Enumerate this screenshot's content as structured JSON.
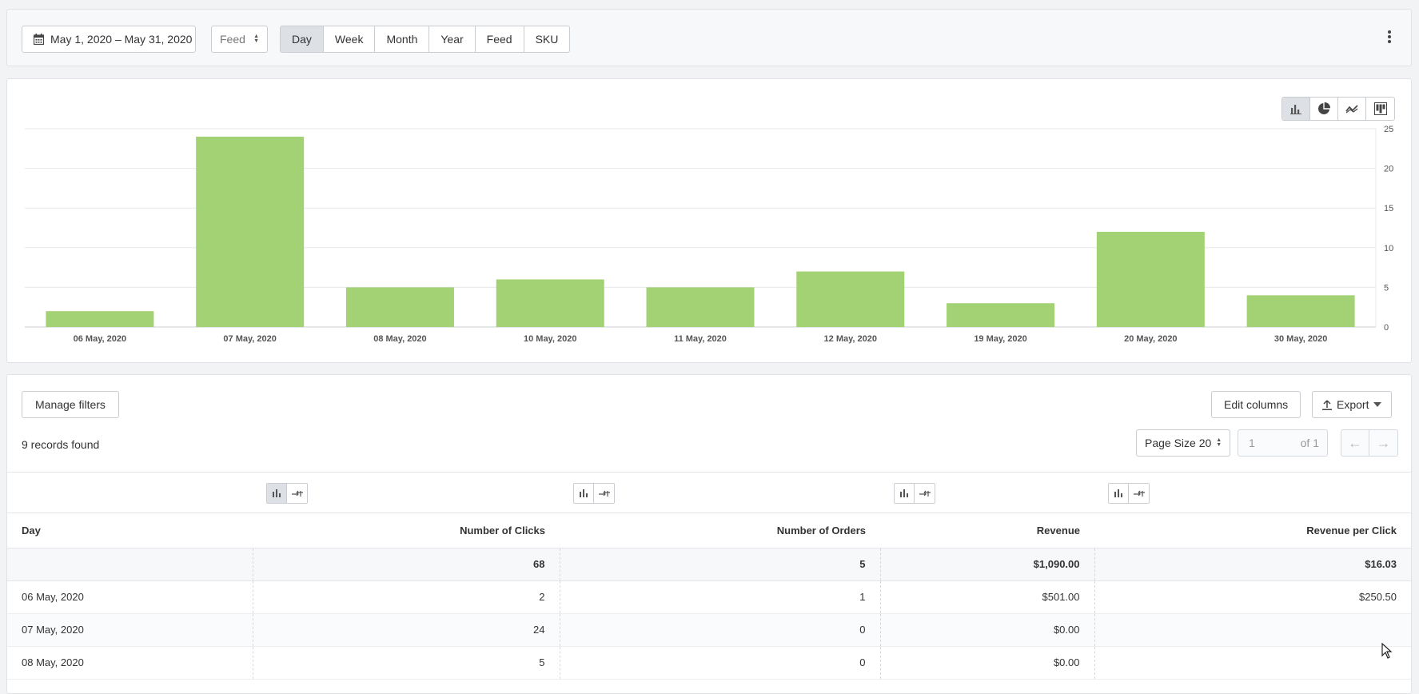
{
  "toolbar": {
    "date_range": "May 1, 2020 – May 31, 2020",
    "group_select": "Feed",
    "segments": [
      "Day",
      "Week",
      "Month",
      "Year",
      "Feed",
      "SKU"
    ],
    "active_segment": "Day",
    "more_icon": "kebab-icon"
  },
  "chart_types": [
    "bar-chart-icon",
    "pie-chart-icon",
    "line-chart-icon",
    "stacked-chart-icon"
  ],
  "chart_data": {
    "type": "bar",
    "categories": [
      "06 May, 2020",
      "07 May, 2020",
      "08 May, 2020",
      "10 May, 2020",
      "11 May, 2020",
      "12 May, 2020",
      "19 May, 2020",
      "20 May, 2020",
      "30 May, 2020"
    ],
    "values": [
      2,
      24,
      5,
      6,
      5,
      7,
      3,
      12,
      4
    ],
    "y_ticks": [
      0,
      5,
      10,
      15,
      20,
      25
    ],
    "ylim": [
      0,
      25
    ],
    "y_axis_side": "right",
    "grid": true,
    "bar_color": "#a3d274"
  },
  "table_controls": {
    "manage_filters": "Manage filters",
    "edit_columns": "Edit columns",
    "export": "Export",
    "records_found": "9 records found",
    "page_size": "Page Size 20",
    "page_number": "1",
    "page_of": "of 1"
  },
  "table": {
    "headers": [
      "Day",
      "Number of Clicks",
      "Number of Orders",
      "Revenue",
      "Revenue per Click"
    ],
    "totals": [
      "",
      "68",
      "5",
      "$1,090.00",
      "$16.03"
    ],
    "rows": [
      [
        "06 May, 2020",
        "2",
        "1",
        "$501.00",
        "$250.50"
      ],
      [
        "07 May, 2020",
        "24",
        "0",
        "$0.00",
        ""
      ],
      [
        "08 May, 2020",
        "5",
        "0",
        "$0.00",
        ""
      ]
    ]
  }
}
